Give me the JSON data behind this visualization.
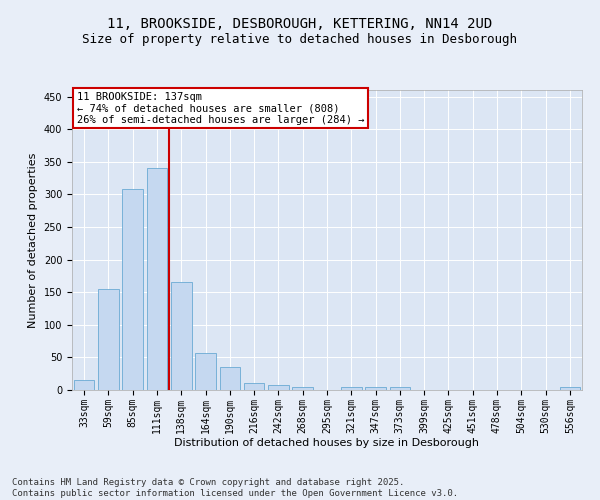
{
  "title": "11, BROOKSIDE, DESBOROUGH, KETTERING, NN14 2UD",
  "subtitle": "Size of property relative to detached houses in Desborough",
  "xlabel": "Distribution of detached houses by size in Desborough",
  "ylabel": "Number of detached properties",
  "categories": [
    "33sqm",
    "59sqm",
    "85sqm",
    "111sqm",
    "138sqm",
    "164sqm",
    "190sqm",
    "216sqm",
    "242sqm",
    "268sqm",
    "295sqm",
    "321sqm",
    "347sqm",
    "373sqm",
    "399sqm",
    "425sqm",
    "451sqm",
    "478sqm",
    "504sqm",
    "530sqm",
    "556sqm"
  ],
  "values": [
    15,
    155,
    308,
    340,
    165,
    57,
    35,
    10,
    8,
    5,
    0,
    5,
    5,
    4,
    0,
    0,
    0,
    0,
    0,
    0,
    4
  ],
  "bar_color": "#c5d8f0",
  "bar_edge_color": "#6aaad4",
  "vline_x": 3.5,
  "vline_color": "#cc0000",
  "annotation_text": "11 BROOKSIDE: 137sqm\n← 74% of detached houses are smaller (808)\n26% of semi-detached houses are larger (284) →",
  "annotation_box_color": "#ffffff",
  "annotation_box_edge": "#cc0000",
  "background_color": "#e8eef8",
  "plot_bg_color": "#dce6f4",
  "grid_color": "#ffffff",
  "ylim": [
    0,
    460
  ],
  "yticks": [
    0,
    50,
    100,
    150,
    200,
    250,
    300,
    350,
    400,
    450
  ],
  "footer_line1": "Contains HM Land Registry data © Crown copyright and database right 2025.",
  "footer_line2": "Contains public sector information licensed under the Open Government Licence v3.0.",
  "title_fontsize": 10,
  "subtitle_fontsize": 9,
  "axis_label_fontsize": 8,
  "tick_fontsize": 7,
  "annotation_fontsize": 7.5,
  "footer_fontsize": 6.5
}
